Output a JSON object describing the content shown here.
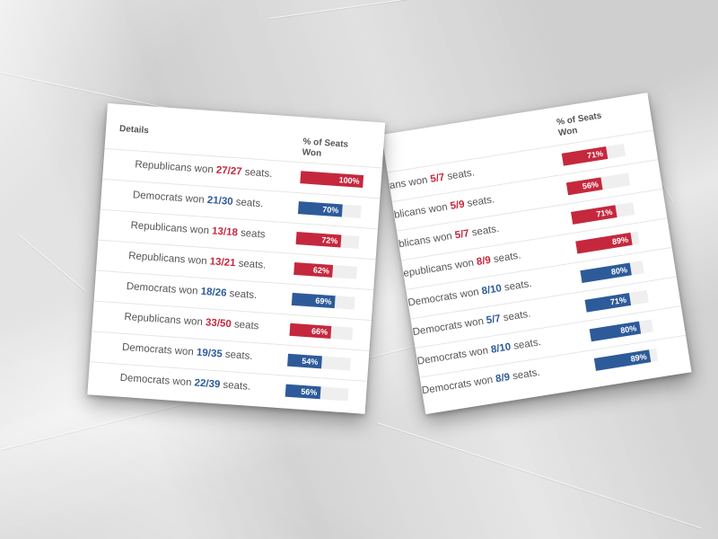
{
  "left_table": {
    "header_details": "Details",
    "header_pct": "% of Seats Won",
    "rows": [
      {
        "prefix": "Republicans won ",
        "seats": "27/27",
        "suffix": " seats.",
        "party": "R",
        "pct": 100,
        "pct_label": "100%"
      },
      {
        "prefix": "Democrats won ",
        "seats": "21/30",
        "suffix": " seats.",
        "party": "D",
        "pct": 70,
        "pct_label": "70%"
      },
      {
        "prefix": "Republicans won ",
        "seats": "13/18",
        "suffix": " seats",
        "party": "R",
        "pct": 72,
        "pct_label": "72%"
      },
      {
        "prefix": "Republicans won ",
        "seats": "13/21",
        "suffix": " seats.",
        "party": "R",
        "pct": 62,
        "pct_label": "62%"
      },
      {
        "prefix": "Democrats won ",
        "seats": "18/26",
        "suffix": " seats.",
        "party": "D",
        "pct": 69,
        "pct_label": "69%"
      },
      {
        "prefix": "Republicans won ",
        "seats": "33/50",
        "suffix": " seats",
        "party": "R",
        "pct": 66,
        "pct_label": "66%"
      },
      {
        "prefix": "Democrats won ",
        "seats": "19/35",
        "suffix": " seats.",
        "party": "D",
        "pct": 54,
        "pct_label": "54%"
      },
      {
        "prefix": "Democrats won ",
        "seats": "22/39",
        "suffix": " seats.",
        "party": "D",
        "pct": 56,
        "pct_label": "56%"
      }
    ]
  },
  "right_table": {
    "header_pct": "% of Seats Won",
    "rows": [
      {
        "prefix": "ans won ",
        "seats": "5/7",
        "suffix": " seats.",
        "party": "R",
        "pct": 71,
        "pct_label": "71%"
      },
      {
        "prefix": "blicans won ",
        "seats": "5/9",
        "suffix": " seats.",
        "party": "R",
        "pct": 56,
        "pct_label": "56%"
      },
      {
        "prefix": "blicans won ",
        "seats": "5/7",
        "suffix": " seats.",
        "party": "R",
        "pct": 71,
        "pct_label": "71%"
      },
      {
        "prefix": "epublicans won ",
        "seats": "8/9",
        "suffix": " seats.",
        "party": "R",
        "pct": 89,
        "pct_label": "89%"
      },
      {
        "prefix": "Democrats won ",
        "seats": "8/10",
        "suffix": " seats.",
        "party": "D",
        "pct": 80,
        "pct_label": "80%"
      },
      {
        "prefix": "Democrats won ",
        "seats": "5/7",
        "suffix": " seats.",
        "party": "D",
        "pct": 71,
        "pct_label": "71%"
      },
      {
        "prefix": "Democrats won ",
        "seats": "8/10",
        "suffix": " seats.",
        "party": "D",
        "pct": 80,
        "pct_label": "80%"
      },
      {
        "prefix": "Democrats won ",
        "seats": "8/9",
        "suffix": " seats.",
        "party": "D",
        "pct": 89,
        "pct_label": "89%"
      }
    ]
  },
  "colors": {
    "republican": "#c5283d",
    "democrat": "#2d5b9a",
    "track": "#efefef"
  }
}
